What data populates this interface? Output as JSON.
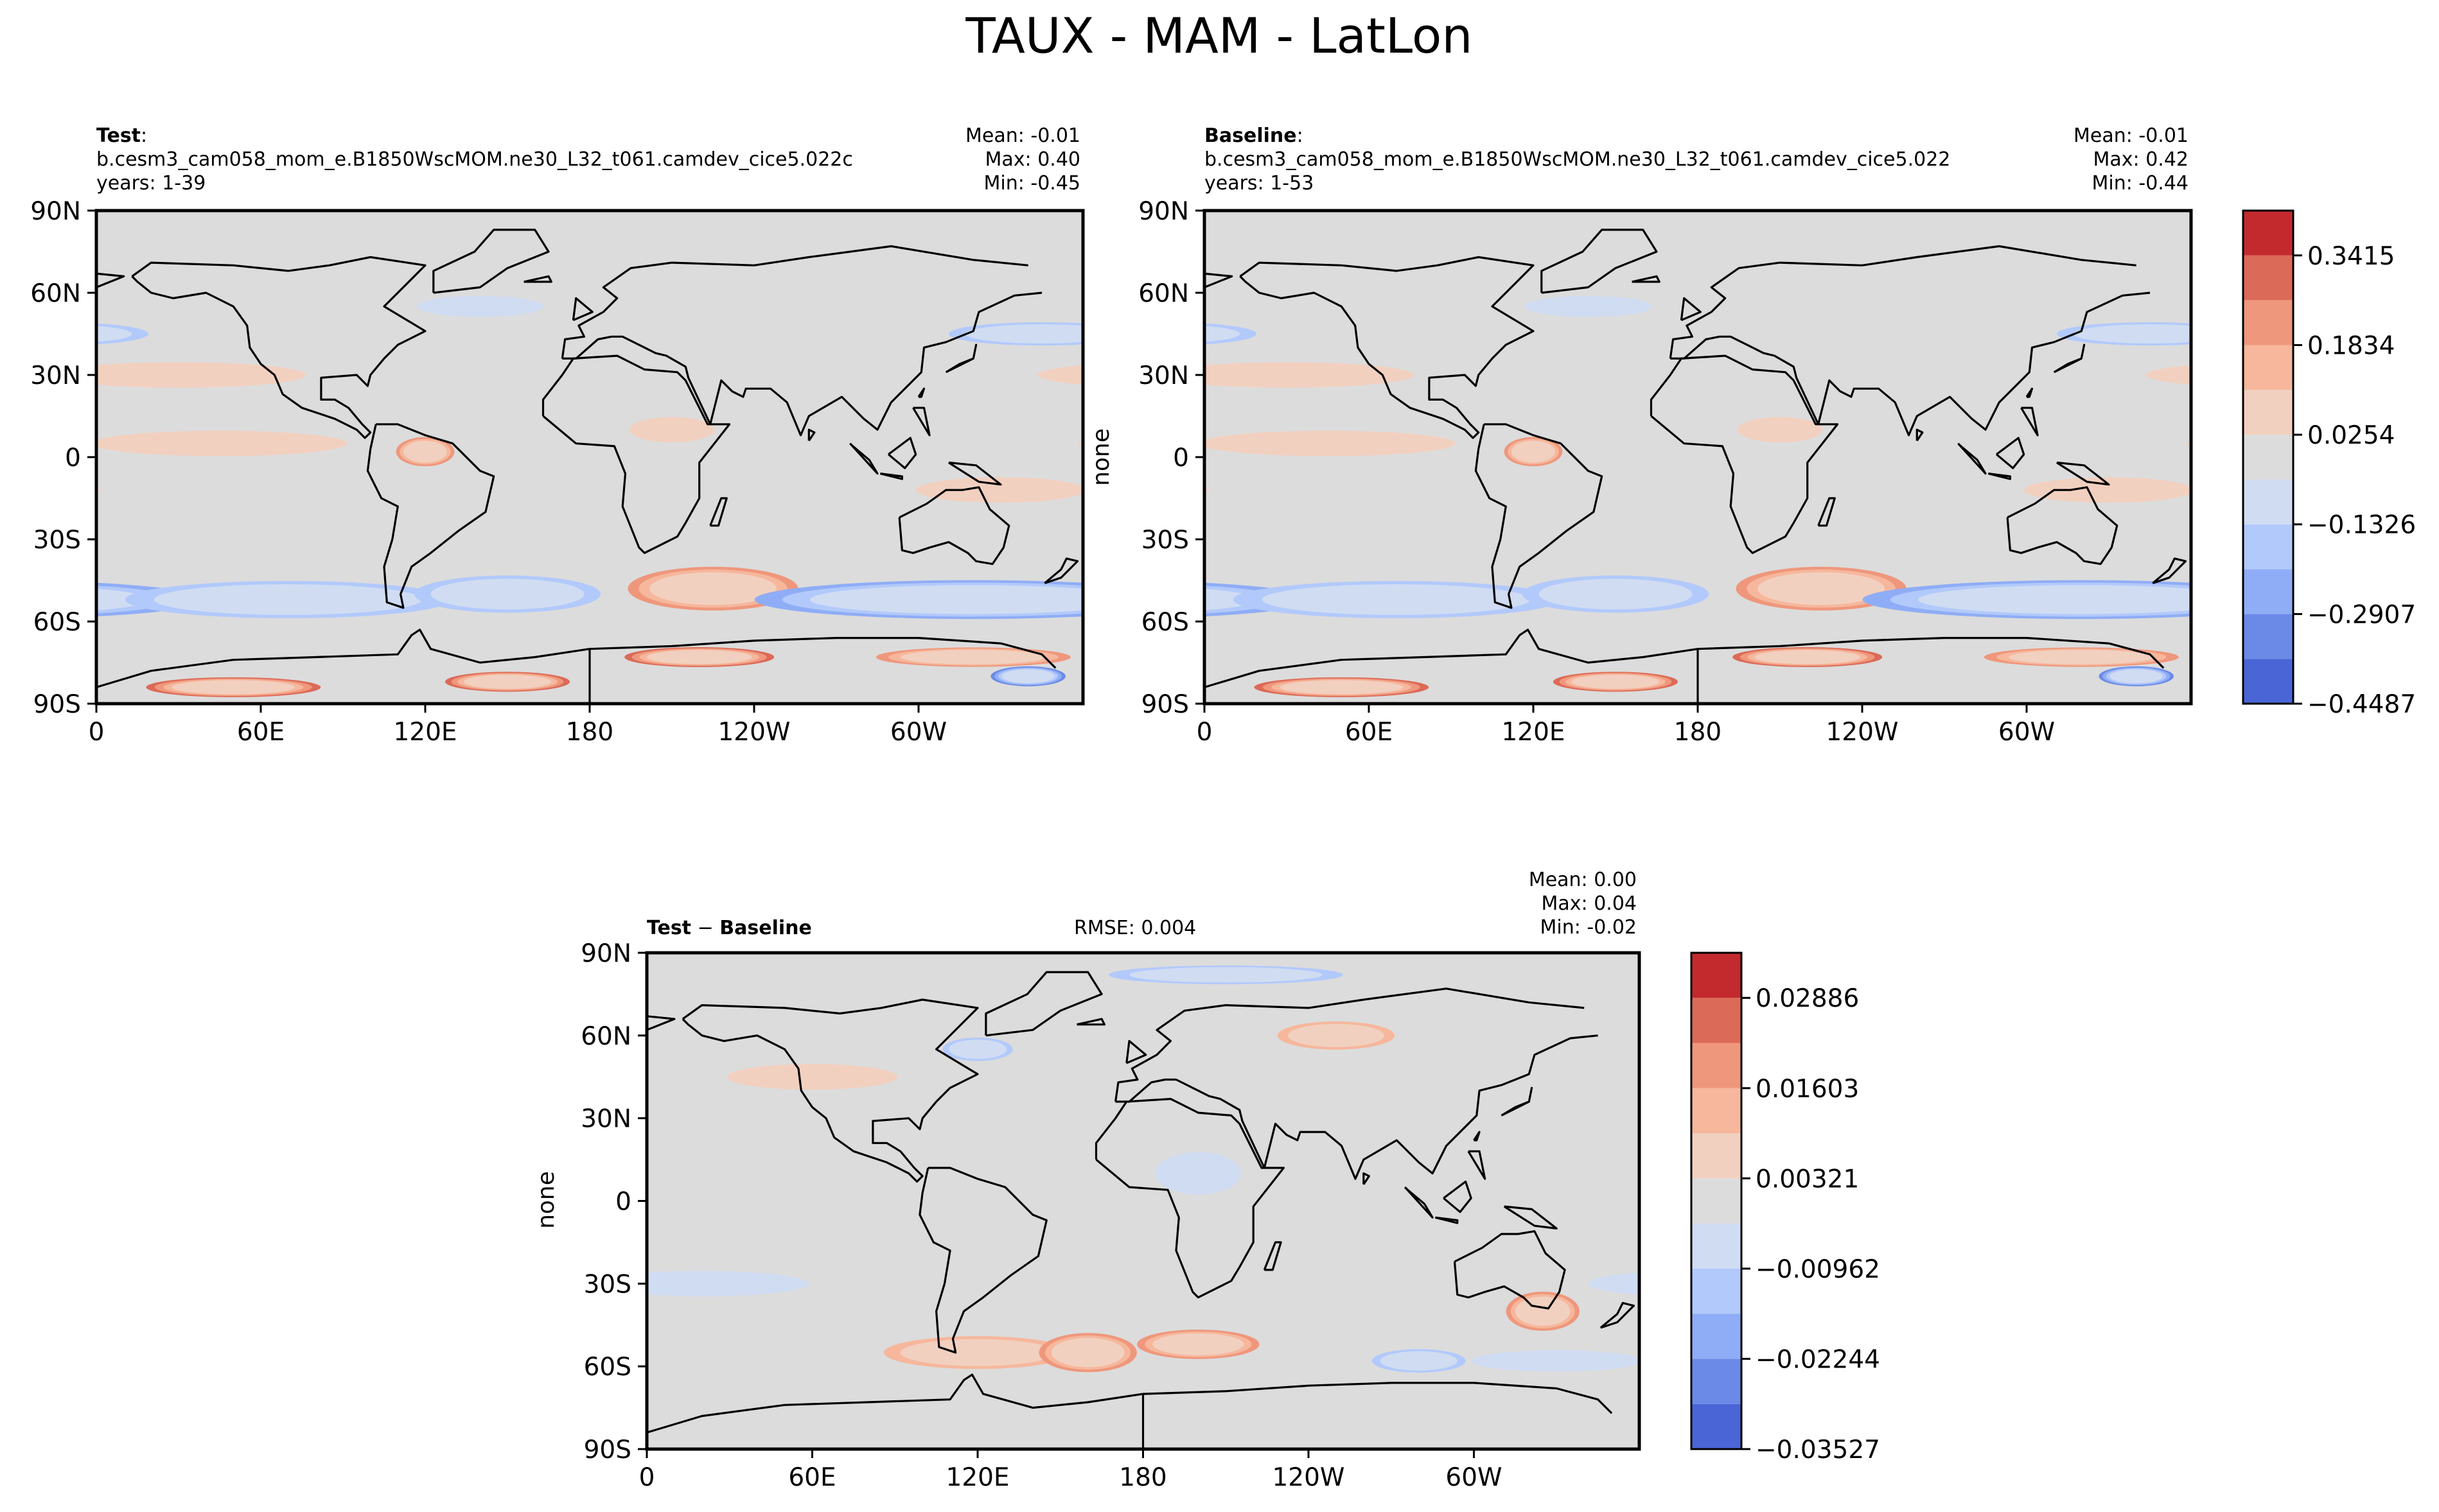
{
  "figure": {
    "title": "TAUX - MAM - LatLon"
  },
  "colors": {
    "main_levels": [
      "#4a66d6",
      "#6b8ae8",
      "#8fadf6",
      "#b2c9fb",
      "#d0dcf2",
      "#dcdcdc",
      "#f2d0c0",
      "#f6b79c",
      "#ef977c",
      "#dc6a58",
      "#c32a2e"
    ],
    "diff_levels": [
      "#4a66d6",
      "#6b8ae8",
      "#8fadf6",
      "#b2c9fb",
      "#d0dcf2",
      "#dcdcdc",
      "#f2d0c0",
      "#f6b79c",
      "#ef977c",
      "#dc6a58",
      "#c32a2e"
    ],
    "coastline": "#000000",
    "background_field": "#dcdcdc"
  },
  "chart_data": [
    {
      "id": "test",
      "type": "heatmap",
      "projection": "PlateCarree, central longitude 180",
      "title_bold": "Test",
      "title_rest": ":",
      "case_name": "b.cesm3_cam058_mom_e.B1850WscMOM.ne30_L32_t061.camdev_cice5.022c",
      "years": "years: 1-39",
      "stats": {
        "mean": "Mean: -0.01",
        "max": "Max:  0.40",
        "min": "Min: -0.45"
      },
      "ylabel": "",
      "xticks": [
        "0",
        "60E",
        "120E",
        "180",
        "120W",
        "60W"
      ],
      "yticks": [
        "90N",
        "60N",
        "30N",
        "0",
        "30S",
        "60S",
        "90S"
      ],
      "xlim": [
        0,
        360
      ],
      "ylim": [
        -90,
        90
      ],
      "grid": false,
      "features": [
        {
          "sign": 1,
          "lon": 45,
          "lat": -48,
          "rlon": 35,
          "rlat": 9,
          "lvl": 3
        },
        {
          "sign": -1,
          "lon": 140,
          "lat": -52,
          "rlon": 90,
          "rlat": 8,
          "lvl": 3
        },
        {
          "sign": -1,
          "lon": 250,
          "lat": -52,
          "rlon": 70,
          "rlat": 8,
          "lvl": 2
        },
        {
          "sign": -1,
          "lon": 330,
          "lat": -50,
          "rlon": 40,
          "rlat": 8,
          "lvl": 2
        },
        {
          "sign": 1,
          "lon": 40,
          "lat": -73,
          "rlon": 30,
          "rlat": 4,
          "lvl": 4
        },
        {
          "sign": 1,
          "lon": 140,
          "lat": -73,
          "rlon": 40,
          "rlat": 4,
          "lvl": 3
        },
        {
          "sign": -1,
          "lon": 160,
          "lat": -80,
          "rlon": 15,
          "rlat": 4,
          "lvl": 4
        },
        {
          "sign": 1,
          "lon": 230,
          "lat": -84,
          "rlon": 35,
          "rlat": 4,
          "lvl": 4
        },
        {
          "sign": 1,
          "lon": 330,
          "lat": -82,
          "rlon": 25,
          "rlat": 4,
          "lvl": 4
        },
        {
          "sign": 1,
          "lon": 150,
          "lat": -12,
          "rlon": 40,
          "rlat": 6,
          "lvl": 1
        },
        {
          "sign": 1,
          "lon": 225,
          "lat": 5,
          "rlon": 60,
          "rlat": 6,
          "lvl": 1
        },
        {
          "sign": -1,
          "lon": 165,
          "lat": 45,
          "rlon": 40,
          "rlat": 5,
          "lvl": 2
        },
        {
          "sign": -1,
          "lon": 320,
          "lat": 55,
          "rlon": 30,
          "rlat": 5,
          "lvl": 1
        },
        {
          "sign": 1,
          "lon": 300,
          "lat": 2,
          "rlon": 12,
          "rlat": 6,
          "lvl": 3
        },
        {
          "sign": 1,
          "lon": 210,
          "lat": 30,
          "rlon": 60,
          "rlat": 6,
          "lvl": 1
        },
        {
          "sign": 1,
          "lon": 30,
          "lat": 10,
          "rlon": 20,
          "rlat": 6,
          "lvl": 1
        }
      ]
    },
    {
      "id": "baseline",
      "type": "heatmap",
      "projection": "PlateCarree, central longitude 180",
      "title_bold": "Baseline",
      "title_rest": ":",
      "case_name": "b.cesm3_cam058_mom_e.B1850WscMOM.ne30_L32_t061.camdev_cice5.022",
      "years": "years: 1-53",
      "stats": {
        "mean": "Mean: -0.01",
        "max": "Max:  0.42",
        "min": "Min: -0.44"
      },
      "ylabel": "none",
      "xticks": [
        "0",
        "60E",
        "120E",
        "180",
        "120W",
        "60W"
      ],
      "yticks": [
        "90N",
        "60N",
        "30N",
        "0",
        "30S",
        "60S",
        "90S"
      ],
      "xlim": [
        0,
        360
      ],
      "ylim": [
        -90,
        90
      ],
      "grid": false,
      "features": [
        {
          "sign": 1,
          "lon": 45,
          "lat": -48,
          "rlon": 35,
          "rlat": 9,
          "lvl": 3
        },
        {
          "sign": -1,
          "lon": 140,
          "lat": -52,
          "rlon": 90,
          "rlat": 8,
          "lvl": 3
        },
        {
          "sign": -1,
          "lon": 250,
          "lat": -52,
          "rlon": 70,
          "rlat": 8,
          "lvl": 2
        },
        {
          "sign": -1,
          "lon": 330,
          "lat": -50,
          "rlon": 40,
          "rlat": 8,
          "lvl": 2
        },
        {
          "sign": 1,
          "lon": 40,
          "lat": -73,
          "rlon": 30,
          "rlat": 4,
          "lvl": 4
        },
        {
          "sign": 1,
          "lon": 140,
          "lat": -73,
          "rlon": 40,
          "rlat": 4,
          "lvl": 3
        },
        {
          "sign": -1,
          "lon": 160,
          "lat": -80,
          "rlon": 15,
          "rlat": 4,
          "lvl": 4
        },
        {
          "sign": 1,
          "lon": 230,
          "lat": -84,
          "rlon": 35,
          "rlat": 4,
          "lvl": 4
        },
        {
          "sign": 1,
          "lon": 330,
          "lat": -82,
          "rlon": 25,
          "rlat": 4,
          "lvl": 4
        },
        {
          "sign": 1,
          "lon": 150,
          "lat": -12,
          "rlon": 40,
          "rlat": 6,
          "lvl": 1
        },
        {
          "sign": 1,
          "lon": 225,
          "lat": 5,
          "rlon": 60,
          "rlat": 6,
          "lvl": 1
        },
        {
          "sign": -1,
          "lon": 165,
          "lat": 45,
          "rlon": 40,
          "rlat": 5,
          "lvl": 2
        },
        {
          "sign": -1,
          "lon": 320,
          "lat": 55,
          "rlon": 30,
          "rlat": 5,
          "lvl": 1
        },
        {
          "sign": 1,
          "lon": 300,
          "lat": 2,
          "rlon": 12,
          "rlat": 6,
          "lvl": 3
        },
        {
          "sign": 1,
          "lon": 210,
          "lat": 30,
          "rlon": 60,
          "rlat": 6,
          "lvl": 1
        },
        {
          "sign": 1,
          "lon": 30,
          "lat": 10,
          "rlon": 20,
          "rlat": 6,
          "lvl": 1
        }
      ]
    },
    {
      "id": "diff",
      "type": "heatmap",
      "projection": "PlateCarree, central longitude 180",
      "title_bold": "Test",
      "title_mid": " − ",
      "title_bold2": "Baseline",
      "rmse": "RMSE: 0.004",
      "stats": {
        "mean": "Mean:  0.00",
        "max": "Max:  0.04",
        "min": "Min: -0.02"
      },
      "ylabel": "none",
      "xticks": [
        "0",
        "60E",
        "120E",
        "180",
        "120W",
        "60W"
      ],
      "yticks": [
        "90N",
        "60N",
        "30N",
        "0",
        "30S",
        "60S",
        "90S"
      ],
      "xlim": [
        0,
        360
      ],
      "ylim": [
        -90,
        90
      ],
      "grid": false,
      "features": [
        {
          "sign": 1,
          "lon": 20,
          "lat": -52,
          "rlon": 25,
          "rlat": 6,
          "lvl": 3
        },
        {
          "sign": 1,
          "lon": 145,
          "lat": -40,
          "rlon": 15,
          "rlat": 8,
          "lvl": 3
        },
        {
          "sign": -1,
          "lon": 100,
          "lat": -58,
          "rlon": 20,
          "rlat": 5,
          "lvl": 2
        },
        {
          "sign": -1,
          "lon": 30,
          "lat": 82,
          "rlon": 50,
          "rlat": 4,
          "lvl": 2
        },
        {
          "sign": 1,
          "lon": 70,
          "lat": 60,
          "rlon": 25,
          "rlat": 6,
          "lvl": 2
        },
        {
          "sign": -1,
          "lon": 300,
          "lat": 55,
          "rlon": 15,
          "rlat": 5,
          "lvl": 2
        },
        {
          "sign": 1,
          "lon": 300,
          "lat": -55,
          "rlon": 40,
          "rlat": 7,
          "lvl": 2
        },
        {
          "sign": -1,
          "lon": 200,
          "lat": -30,
          "rlon": 50,
          "rlat": 6,
          "lvl": 1
        },
        {
          "sign": 1,
          "lon": 240,
          "lat": 45,
          "rlon": 40,
          "rlat": 6,
          "lvl": 1
        },
        {
          "sign": -1,
          "lon": 150,
          "lat": -58,
          "rlon": 40,
          "rlat": 5,
          "lvl": 1
        },
        {
          "sign": -1,
          "lon": 20,
          "lat": 10,
          "rlon": 20,
          "rlat": 10,
          "lvl": 1
        },
        {
          "sign": 1,
          "lon": 340,
          "lat": -55,
          "rlon": 20,
          "rlat": 8,
          "lvl": 3
        }
      ]
    }
  ],
  "colorbars": {
    "main": {
      "levels": [
        -0.4487,
        -0.3697,
        -0.2907,
        -0.2117,
        -0.1326,
        -0.0536,
        0.0254,
        0.1044,
        0.1834,
        0.2624,
        0.3415,
        0.4205
      ],
      "tick_labels": [
        "−0.4487",
        "−0.2907",
        "−0.1326",
        "0.0254",
        "0.1834",
        "0.3415"
      ],
      "tick_values": [
        -0.4487,
        -0.2907,
        -0.1326,
        0.0254,
        0.1834,
        0.3415
      ]
    },
    "diff": {
      "levels": [
        -0.03527,
        -0.02886,
        -0.02244,
        -0.01603,
        -0.00962,
        -0.00321,
        0.00321,
        0.00962,
        0.01603,
        0.02244,
        0.02886,
        0.03527
      ],
      "tick_labels": [
        "−0.03527",
        "−0.02244",
        "−0.00962",
        "0.00321",
        "0.01603",
        "0.02886"
      ],
      "tick_values": [
        -0.03527,
        -0.02244,
        -0.00962,
        0.00321,
        0.01603,
        0.02886
      ]
    }
  }
}
